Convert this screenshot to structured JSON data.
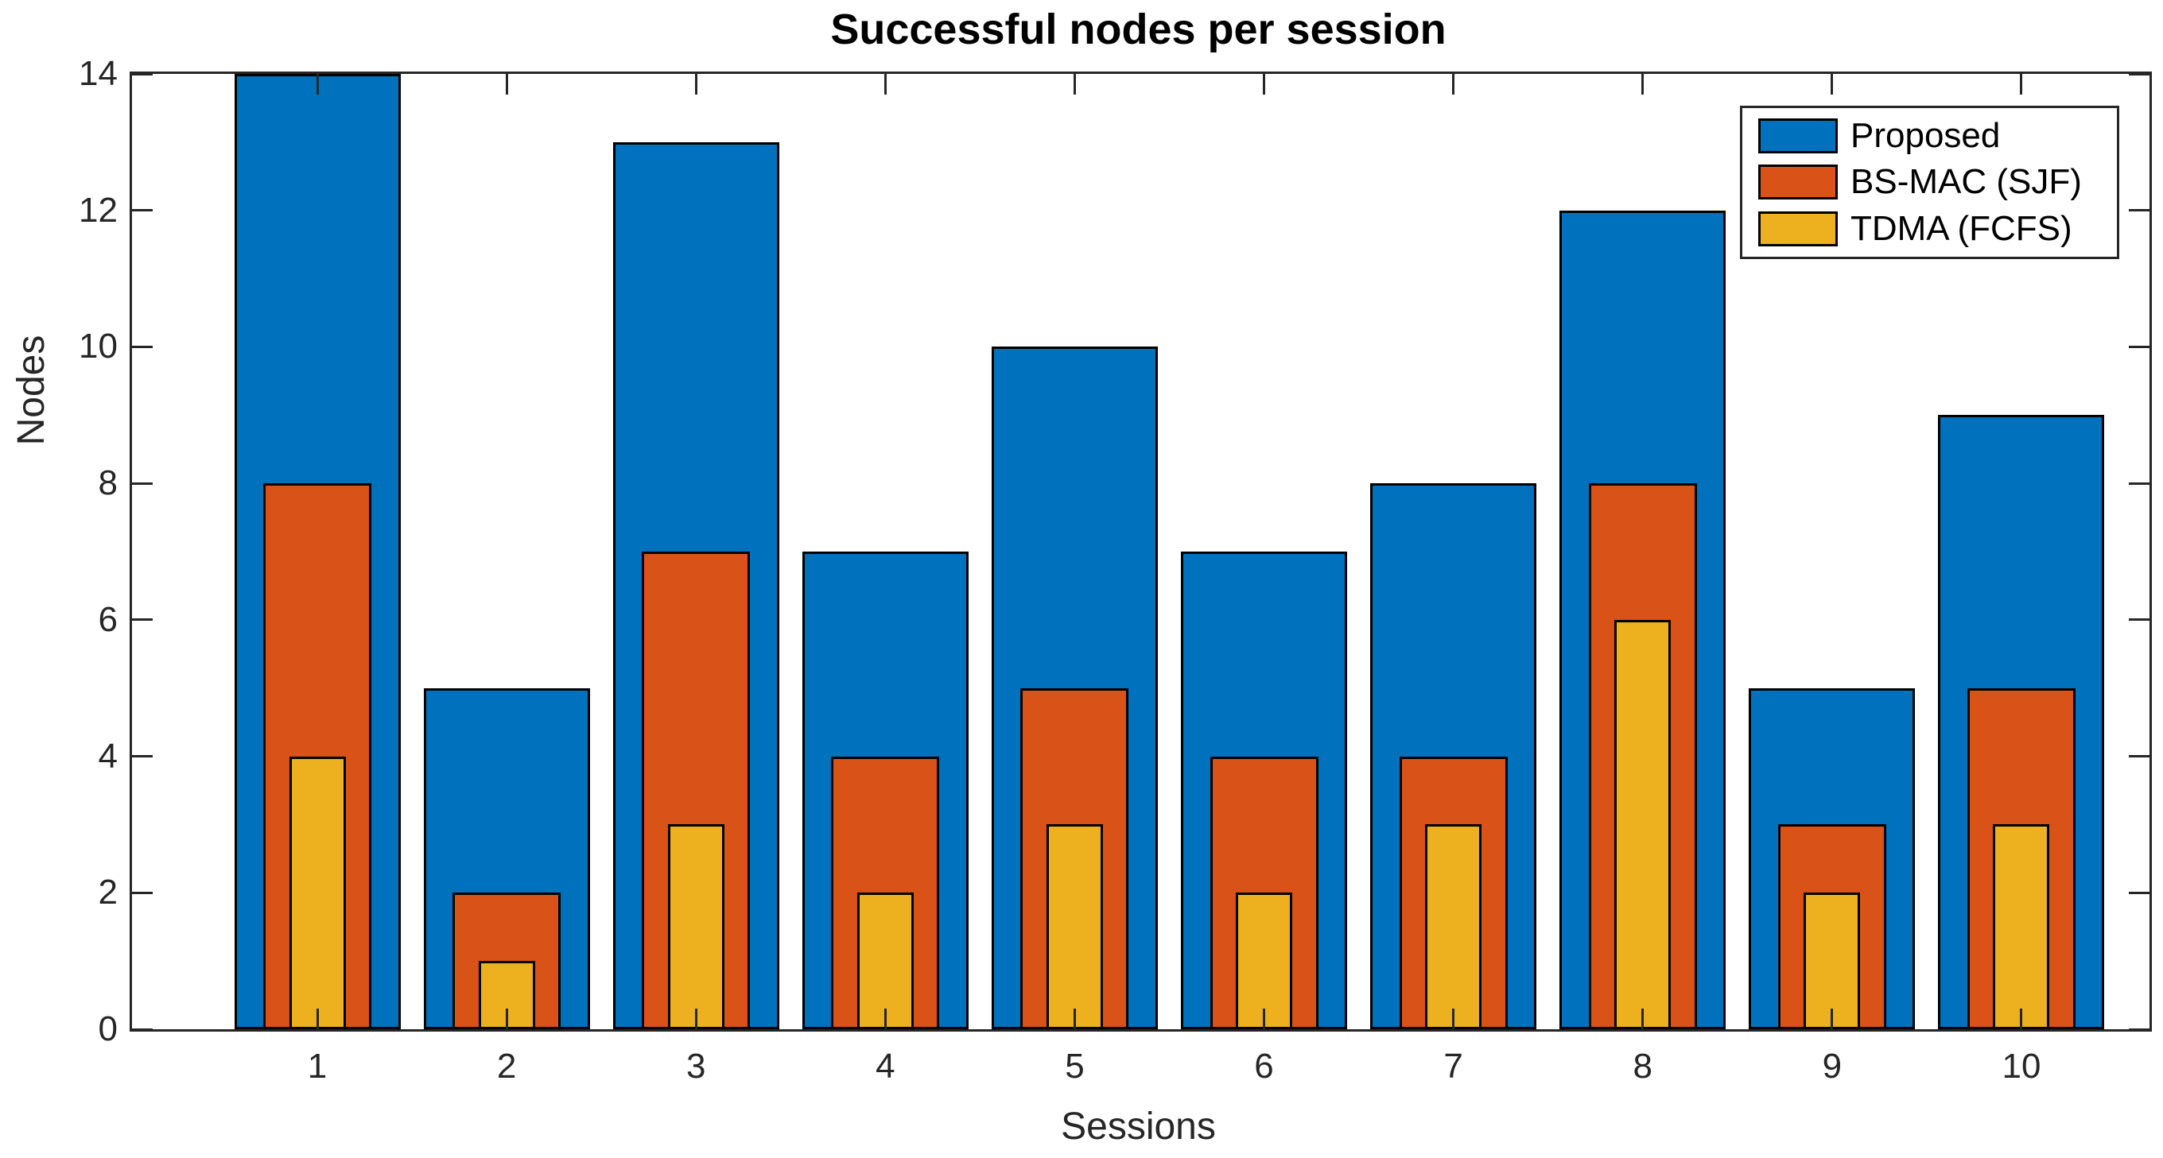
{
  "chart_data": {
    "type": "bar",
    "subtype": "overlaid-bars",
    "title": "Successful nodes per session",
    "xlabel": "Sessions",
    "ylabel": "Nodes",
    "categories": [
      "1",
      "2",
      "3",
      "4",
      "5",
      "6",
      "7",
      "8",
      "9",
      "10"
    ],
    "series": [
      {
        "name": "Proposed",
        "color": "#0072BD",
        "values": [
          14,
          5,
          13,
          7,
          10,
          7,
          8,
          12,
          5,
          9
        ]
      },
      {
        "name": "BS-MAC (SJF)",
        "color": "#D95319",
        "values": [
          8,
          2,
          7,
          4,
          5,
          4,
          4,
          8,
          3,
          5
        ]
      },
      {
        "name": "TDMA (FCFS)",
        "color": "#EDB120",
        "values": [
          4,
          1,
          3,
          2,
          3,
          2,
          3,
          6,
          2,
          3
        ]
      }
    ],
    "ylim": [
      0,
      14
    ],
    "yticks": [
      "0",
      "2",
      "4",
      "6",
      "8",
      "10",
      "12",
      "14"
    ],
    "grid": false,
    "legend_position": "top-right",
    "bar_edge_color": "#000000",
    "axis_color": "#262626"
  }
}
